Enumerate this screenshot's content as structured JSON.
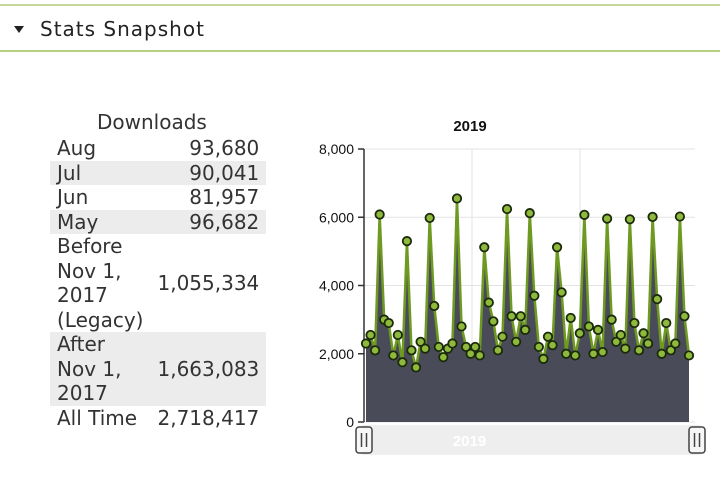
{
  "header": {
    "title": "Stats Snapshot"
  },
  "downloads": {
    "heading": "Downloads",
    "rows": [
      {
        "label": "Aug",
        "value": "93,680"
      },
      {
        "label": "Jul",
        "value": "90,041"
      },
      {
        "label": "Jun",
        "value": "81,957"
      },
      {
        "label": "May",
        "value": "96,682"
      },
      {
        "label": "Before Nov 1, 2017 (Legacy)",
        "value": "1,055,334"
      },
      {
        "label": "After Nov 1, 2017",
        "value": "1,663,083"
      },
      {
        "label": "All Time",
        "value": "2,718,417"
      }
    ]
  },
  "chart_data": {
    "type": "area",
    "title": "2019",
    "ylim": [
      0,
      8000
    ],
    "yticks": [
      "8,000",
      "6,000",
      "4,000",
      "2,000",
      "0"
    ],
    "grid": true,
    "navigator_label": "2019",
    "colors": {
      "line": "#6f9a22",
      "point_fill": "#8fb93c",
      "point_stroke": "#1a2a0a",
      "area": "#4a4b58"
    },
    "values": [
      2300,
      2550,
      2100,
      6080,
      3000,
      2900,
      1950,
      2550,
      1750,
      5300,
      2100,
      1600,
      2350,
      2150,
      5980,
      3400,
      2200,
      1900,
      2150,
      2300,
      6550,
      2800,
      2200,
      2000,
      2200,
      1950,
      5120,
      3500,
      2950,
      2100,
      2500,
      6240,
      3100,
      2350,
      3100,
      2700,
      6120,
      3700,
      2200,
      1850,
      2500,
      2250,
      5120,
      3800,
      2000,
      3050,
      1950,
      2600,
      6070,
      2800,
      2000,
      2700,
      2050,
      5960,
      3000,
      2350,
      2550,
      2150,
      5940,
      2900,
      2100,
      2600,
      2300,
      6010,
      3600,
      2000,
      2900,
      2100,
      2300,
      6020,
      3100,
      1950
    ]
  }
}
